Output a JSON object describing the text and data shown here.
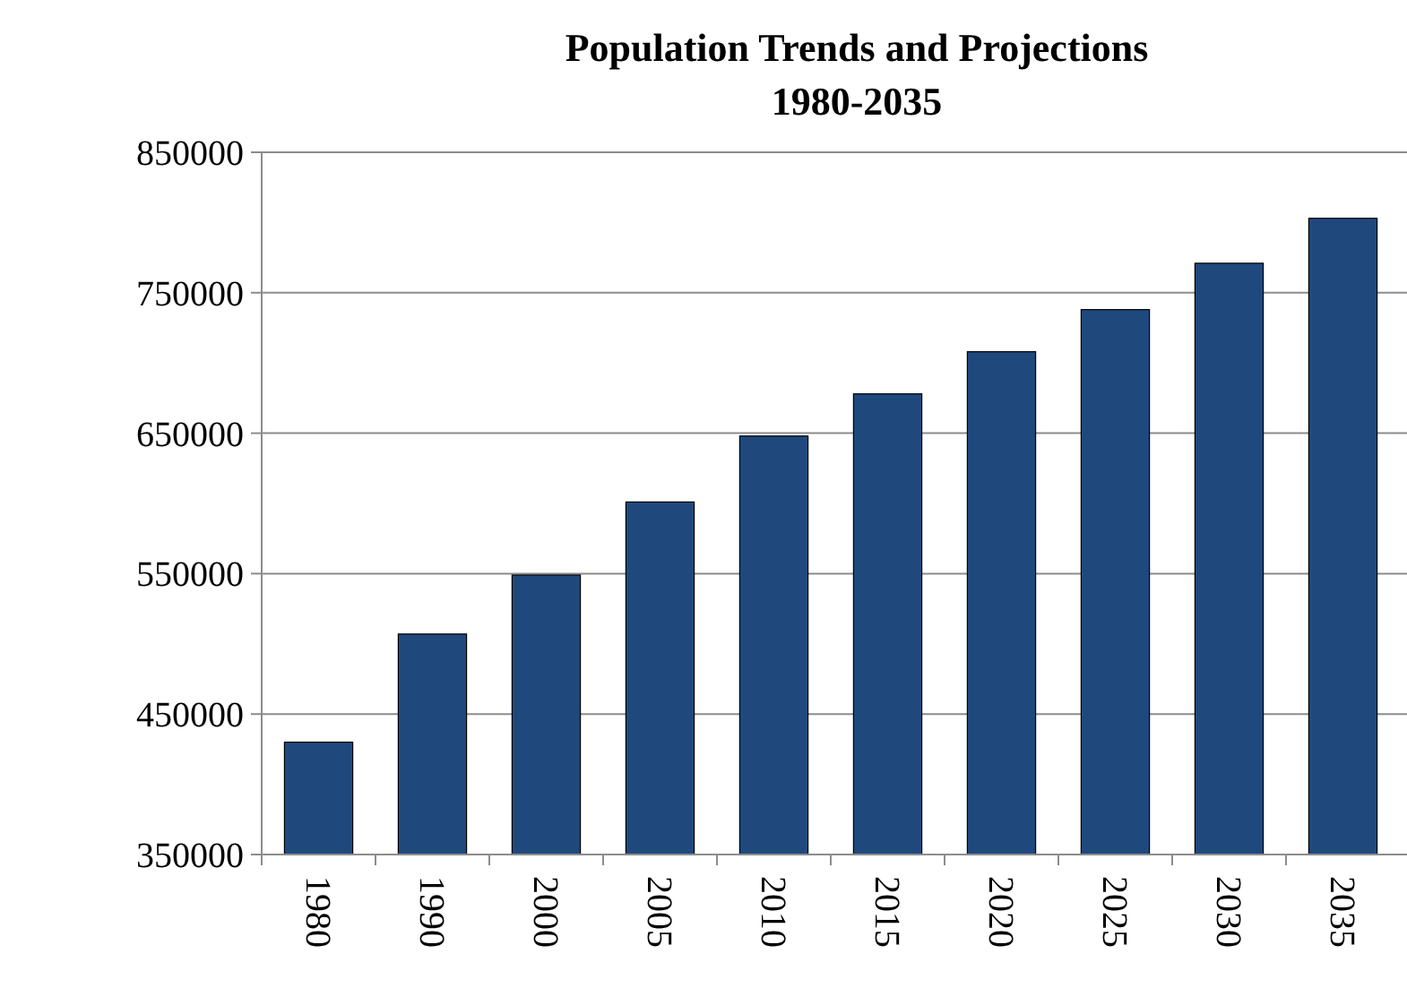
{
  "chart_data": {
    "type": "bar",
    "title": "Population Trends and Projections\n1980-2035",
    "categories": [
      "1980",
      "1990",
      "2000",
      "2005",
      "2010",
      "2015",
      "2020",
      "2025",
      "2030",
      "2035"
    ],
    "values": [
      430000,
      507000,
      549000,
      601000,
      648000,
      678000,
      708000,
      738000,
      771000,
      803000
    ],
    "color": "#1f497d",
    "ylim": [
      350000,
      850000
    ],
    "yticks": [
      350000,
      450000,
      550000,
      650000,
      750000,
      850000
    ],
    "grid": "y"
  }
}
